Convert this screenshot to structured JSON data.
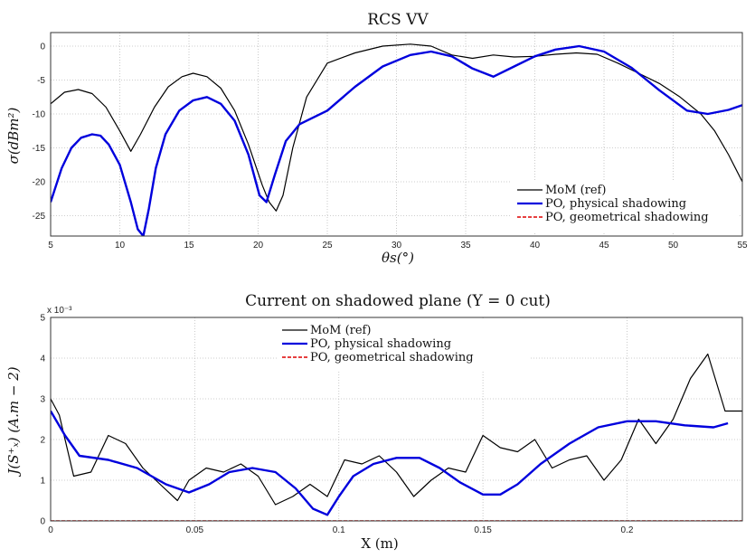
{
  "chart_data": [
    {
      "type": "line",
      "title": "RCS VV",
      "xlabel": "θs(°)",
      "ylabel": "σ(dBm²)",
      "xlim": [
        5,
        55
      ],
      "ylim": [
        -28,
        2
      ],
      "x_ticks": [
        "5",
        "10",
        "15",
        "20",
        "25",
        "30",
        "35",
        "40",
        "45",
        "50",
        "55"
      ],
      "y_ticks": [
        "0",
        "-5",
        "-10",
        "-15",
        "-20",
        "-25"
      ],
      "grid": true,
      "legend_position": "bottom-right",
      "series": [
        {
          "name": "MoM (ref)",
          "color": "#000000",
          "dash": "",
          "width": 1.2,
          "x": [
            5,
            6,
            7,
            8,
            9,
            10,
            10.8,
            11.5,
            12.5,
            13.5,
            14.5,
            15.3,
            16.3,
            17.3,
            18.3,
            19.3,
            20.3,
            20.8,
            21.3,
            21.8,
            22.5,
            23.5,
            25,
            27,
            29,
            31,
            32.5,
            34,
            35.5,
            37,
            38.5,
            40,
            41.5,
            43,
            44.5,
            46,
            47.5,
            49,
            50.5,
            52,
            53,
            54,
            55
          ],
          "y": [
            -8.5,
            -6.8,
            -6.4,
            -7,
            -9,
            -12.5,
            -15.5,
            -13,
            -9,
            -6,
            -4.5,
            -4,
            -4.5,
            -6.2,
            -9.5,
            -14.5,
            -20.5,
            -23,
            -24.3,
            -22,
            -15,
            -7.5,
            -2.5,
            -1,
            0,
            0.3,
            0,
            -1.3,
            -1.8,
            -1.3,
            -1.6,
            -1.5,
            -1.2,
            -1,
            -1.2,
            -2.5,
            -4,
            -5.5,
            -7.5,
            -10,
            -12.5,
            -16,
            -20
          ]
        },
        {
          "name": "PO, physical shadowing",
          "color": "#0000dd",
          "dash": "",
          "width": 2.4,
          "x": [
            5,
            5.8,
            6.5,
            7.2,
            8,
            8.6,
            9.2,
            10,
            10.8,
            11.3,
            11.7,
            12.1,
            12.6,
            13.3,
            14.3,
            15.3,
            16.3,
            17.3,
            18.3,
            19.3,
            20.1,
            20.6,
            21.2,
            22,
            23,
            25,
            27,
            29,
            31,
            32.5,
            34,
            35.5,
            37,
            38.5,
            40,
            41.5,
            43.2,
            45,
            47,
            49,
            51,
            52.5,
            54,
            55
          ],
          "y": [
            -23,
            -18,
            -15,
            -13.5,
            -13,
            -13.2,
            -14.5,
            -17.5,
            -23,
            -27,
            -28,
            -24,
            -18,
            -13,
            -9.5,
            -8,
            -7.5,
            -8.5,
            -11,
            -16,
            -22,
            -23,
            -19,
            -14,
            -11.5,
            -9.5,
            -6,
            -3,
            -1.3,
            -0.8,
            -1.5,
            -3.3,
            -4.5,
            -3,
            -1.5,
            -0.5,
            0,
            -0.8,
            -3.2,
            -6.5,
            -9.5,
            -10,
            -9.4,
            -8.7
          ]
        },
        {
          "name": "PO, geometrical shadowing",
          "color": "#dd0000",
          "dash": "4 2",
          "width": 1.5,
          "x": [],
          "y": []
        }
      ]
    },
    {
      "type": "line",
      "title": "Current on shadowed plane (Y = 0 cut)",
      "xlabel": "X (m)",
      "ylabel": "J(S⁺ₓ) (A.m − 2)",
      "y_exponent": "x 10⁻³",
      "xlim": [
        0,
        0.24
      ],
      "ylim": [
        0,
        5
      ],
      "x_ticks": [
        "0",
        "0.05",
        "0.1",
        "0.15",
        "0.2"
      ],
      "y_ticks": [
        "0",
        "1",
        "2",
        "3",
        "4",
        "5"
      ],
      "grid": true,
      "legend_position": "top-center",
      "series": [
        {
          "name": "MoM (ref)",
          "color": "#000000",
          "dash": "",
          "width": 1.2,
          "x": [
            0,
            0.003,
            0.008,
            0.014,
            0.02,
            0.026,
            0.032,
            0.038,
            0.044,
            0.048,
            0.054,
            0.06,
            0.066,
            0.072,
            0.078,
            0.084,
            0.09,
            0.096,
            0.102,
            0.108,
            0.114,
            0.12,
            0.126,
            0.132,
            0.138,
            0.144,
            0.15,
            0.156,
            0.162,
            0.168,
            0.174,
            0.18,
            0.186,
            0.192,
            0.198,
            0.204,
            0.21,
            0.216,
            0.222,
            0.228,
            0.234,
            0.24
          ],
          "y": [
            3.0,
            2.6,
            1.1,
            1.2,
            2.1,
            1.9,
            1.3,
            0.9,
            0.5,
            1.0,
            1.3,
            1.2,
            1.4,
            1.1,
            0.4,
            0.6,
            0.9,
            0.6,
            1.5,
            1.4,
            1.6,
            1.2,
            0.6,
            1.0,
            1.3,
            1.2,
            2.1,
            1.8,
            1.7,
            2.0,
            1.3,
            1.5,
            1.6,
            1.0,
            1.5,
            2.5,
            1.9,
            2.5,
            3.5,
            4.1,
            2.7,
            2.7
          ]
        },
        {
          "name": "PO, physical shadowing",
          "color": "#0000dd",
          "dash": "",
          "width": 2.4,
          "x": [
            0,
            0.005,
            0.01,
            0.02,
            0.03,
            0.04,
            0.048,
            0.055,
            0.062,
            0.07,
            0.078,
            0.085,
            0.091,
            0.096,
            0.1,
            0.105,
            0.112,
            0.12,
            0.128,
            0.135,
            0.142,
            0.15,
            0.156,
            0.162,
            0.17,
            0.18,
            0.19,
            0.2,
            0.21,
            0.22,
            0.23,
            0.235
          ],
          "y": [
            2.7,
            2.1,
            1.6,
            1.5,
            1.3,
            0.9,
            0.7,
            0.9,
            1.2,
            1.3,
            1.2,
            0.8,
            0.3,
            0.15,
            0.6,
            1.1,
            1.4,
            1.55,
            1.55,
            1.3,
            0.95,
            0.65,
            0.65,
            0.9,
            1.4,
            1.9,
            2.3,
            2.45,
            2.45,
            2.35,
            2.3,
            2.4
          ]
        },
        {
          "name": "PO, geometrical shadowing",
          "color": "#dd0000",
          "dash": "4 2",
          "width": 1.5,
          "x": [
            0,
            0.24
          ],
          "y": [
            0,
            0
          ]
        }
      ]
    }
  ]
}
